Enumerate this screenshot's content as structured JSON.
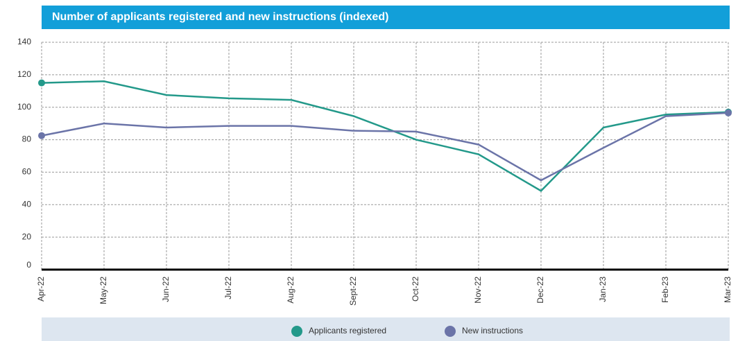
{
  "chart_data": {
    "type": "line",
    "title": "Number of applicants registered and new instructions (indexed)",
    "categories": [
      "Apr-22",
      "May-22",
      "Jun-22",
      "Jul-22",
      "Aug-22",
      "Sept-22",
      "Oct-22",
      "Nov-22",
      "Dec-22",
      "Jan-23",
      "Feb-23",
      "Mar-23"
    ],
    "series": [
      {
        "name": "Applicants registered",
        "color": "#23998a",
        "values": [
          115,
          116,
          107.5,
          105.5,
          104.5,
          94.5,
          80,
          71,
          48.5,
          87.5,
          95.5,
          97
        ]
      },
      {
        "name": "New instructions",
        "color": "#6b74a8",
        "values": [
          82.5,
          90,
          87.5,
          88.5,
          88.5,
          85.5,
          85,
          77,
          55,
          75,
          94.5,
          96.5
        ]
      }
    ],
    "ylim": [
      0,
      140
    ],
    "yticks": [
      0,
      20,
      40,
      60,
      80,
      100,
      120,
      140
    ],
    "grid": true,
    "legend": "bottom"
  }
}
